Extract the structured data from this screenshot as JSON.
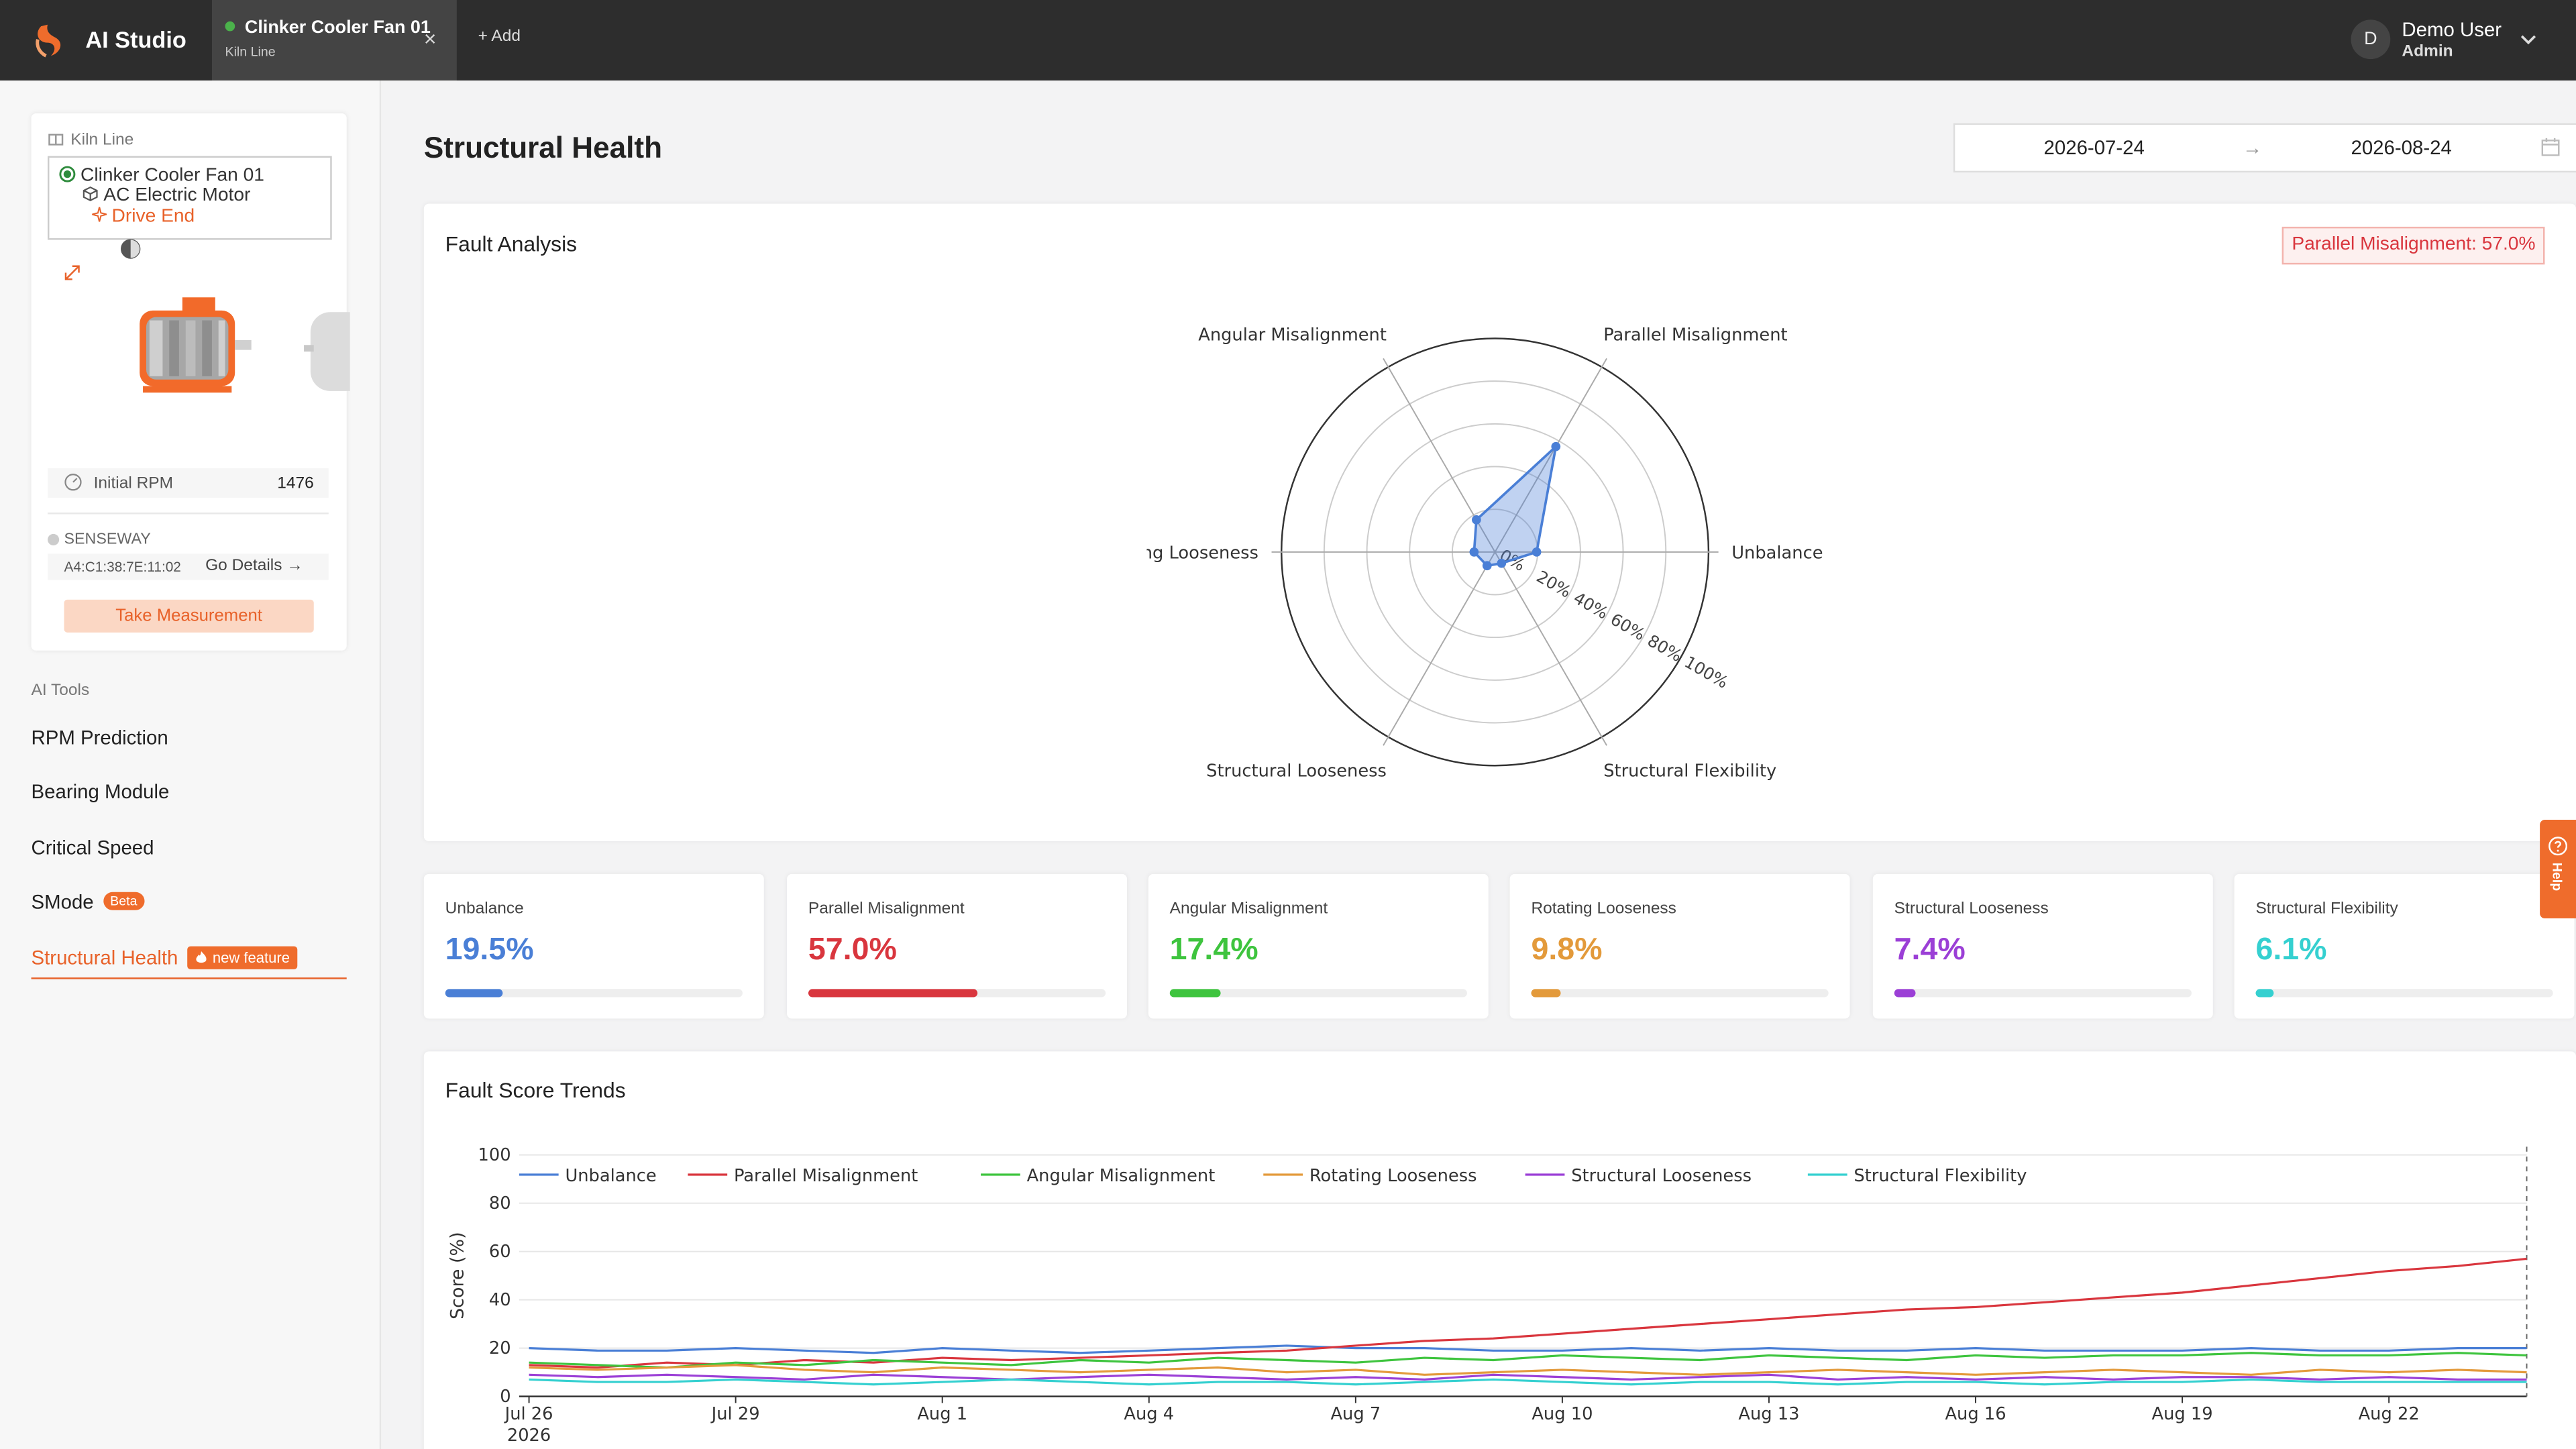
{
  "app": {
    "title": "AI Studio"
  },
  "tabs": [
    {
      "title": "Clinker Cooler Fan 01",
      "subtitle": "Kiln Line",
      "close": "×"
    }
  ],
  "add_label": "+ Add",
  "user": {
    "initial": "D",
    "name": "Demo User",
    "role": "Admin"
  },
  "sidebar": {
    "kiln_line": "Kiln Line",
    "tree": {
      "asset": "Clinker Cooler Fan 01",
      "component": "AC Electric Motor",
      "point": "Drive End"
    },
    "rpm_label": "Initial RPM",
    "rpm_value": "1476",
    "sensor_name": "SENSEWAY",
    "mac": "A4:C1:38:7E:11:02",
    "go_details": "Go Details →",
    "take_measurement": "Take Measurement",
    "ai_tools_label": "AI Tools",
    "tools": [
      {
        "label": "RPM Prediction"
      },
      {
        "label": "Bearing Module"
      },
      {
        "label": "Critical Speed"
      },
      {
        "label": "SMode",
        "badge": "Beta"
      },
      {
        "label": "Structural Health",
        "badge": "new feature",
        "active": true
      }
    ]
  },
  "page_title": "Structural Health",
  "date_range": {
    "start": "2026-07-24",
    "arrow": "→",
    "end": "2026-08-24"
  },
  "fault_analysis": {
    "title": "Fault Analysis",
    "badge": "Parallel Misalignment: 57.0%"
  },
  "metrics": [
    {
      "label": "Unbalance",
      "value": "19.5%",
      "pct": 19.5,
      "color": "#4a7fd6"
    },
    {
      "label": "Parallel Misalignment",
      "value": "57.0%",
      "pct": 57.0,
      "color": "#d9363e"
    },
    {
      "label": "Angular Misalignment",
      "value": "17.4%",
      "pct": 17.4,
      "color": "#3ec43e"
    },
    {
      "label": "Rotating Looseness",
      "value": "9.8%",
      "pct": 9.8,
      "color": "#e39a3b"
    },
    {
      "label": "Structural Looseness",
      "value": "7.4%",
      "pct": 7.4,
      "color": "#9b3fd6"
    },
    {
      "label": "Structural Flexibility",
      "value": "6.1%",
      "pct": 6.1,
      "color": "#35d0d0"
    }
  ],
  "trend": {
    "title": "Fault Score Trends"
  },
  "help_label": "Help",
  "chart_data": [
    {
      "type": "radar",
      "categories": [
        "Unbalance",
        "Parallel Misalignment",
        "Angular Misalignment",
        "ng Looseness",
        "Structural Looseness",
        "Structural Flexibility"
      ],
      "values": [
        19.5,
        57.0,
        17.4,
        9.8,
        7.4,
        6.1
      ],
      "radial_ticks": [
        "0%",
        "20%",
        "40%",
        "60%",
        "80%",
        "100%"
      ],
      "range": [
        0,
        100
      ],
      "color": "#4a7fd6"
    },
    {
      "type": "line",
      "ylabel": "Score (%)",
      "ylim": [
        0,
        100
      ],
      "yticks": [
        0,
        20,
        40,
        60,
        80,
        100
      ],
      "x": [
        "Jul 26",
        "Jul 27",
        "Jul 28",
        "Jul 29",
        "Jul 30",
        "Jul 31",
        "Aug 1",
        "Aug 2",
        "Aug 3",
        "Aug 4",
        "Aug 5",
        "Aug 6",
        "Aug 7",
        "Aug 8",
        "Aug 9",
        "Aug 10",
        "Aug 11",
        "Aug 12",
        "Aug 13",
        "Aug 14",
        "Aug 15",
        "Aug 16",
        "Aug 17",
        "Aug 18",
        "Aug 19",
        "Aug 20",
        "Aug 21",
        "Aug 22",
        "Aug 23",
        "Aug 24"
      ],
      "xtick_labels": [
        "Jul 26",
        "Jul 29",
        "Aug 1",
        "Aug 4",
        "Aug 7",
        "Aug 10",
        "Aug 13",
        "Aug 16",
        "Aug 19",
        "Aug 22"
      ],
      "year_label": "2026",
      "legend": "top-left",
      "grid": true,
      "series": [
        {
          "name": "Unbalance",
          "color": "#4a7fd6",
          "values": [
            20,
            19,
            19,
            20,
            19,
            18,
            20,
            19,
            18,
            19,
            20,
            21,
            20,
            20,
            19,
            19,
            20,
            19,
            20,
            19,
            19,
            20,
            19,
            19,
            19,
            20,
            19,
            19,
            20,
            20
          ]
        },
        {
          "name": "Parallel Misalignment",
          "color": "#d9363e",
          "values": [
            13,
            12,
            14,
            13,
            15,
            14,
            16,
            15,
            16,
            17,
            18,
            19,
            21,
            23,
            24,
            26,
            28,
            30,
            32,
            34,
            36,
            37,
            39,
            41,
            43,
            46,
            49,
            52,
            54,
            57
          ]
        },
        {
          "name": "Angular Misalignment",
          "color": "#3ec43e",
          "values": [
            14,
            13,
            12,
            14,
            13,
            15,
            14,
            13,
            15,
            14,
            16,
            15,
            14,
            16,
            15,
            17,
            16,
            15,
            17,
            16,
            15,
            17,
            16,
            17,
            17,
            18,
            17,
            17,
            18,
            17
          ]
        },
        {
          "name": "Rotating Looseness",
          "color": "#e39a3b",
          "values": [
            12,
            11,
            12,
            13,
            11,
            10,
            12,
            11,
            10,
            11,
            12,
            10,
            11,
            9,
            10,
            11,
            10,
            9,
            10,
            11,
            10,
            9,
            10,
            11,
            10,
            9,
            11,
            10,
            11,
            10
          ]
        },
        {
          "name": "Structural Looseness",
          "color": "#9b3fd6",
          "values": [
            9,
            8,
            9,
            8,
            7,
            9,
            8,
            7,
            8,
            9,
            8,
            7,
            8,
            7,
            9,
            8,
            7,
            8,
            9,
            7,
            8,
            7,
            8,
            7,
            8,
            8,
            7,
            8,
            7,
            7
          ]
        },
        {
          "name": "Structural Flexibility",
          "color": "#35d0d0",
          "values": [
            7,
            6,
            6,
            7,
            6,
            5,
            6,
            7,
            6,
            5,
            6,
            6,
            5,
            6,
            7,
            6,
            5,
            6,
            6,
            5,
            6,
            6,
            5,
            6,
            6,
            7,
            6,
            6,
            6,
            6
          ]
        }
      ]
    }
  ]
}
